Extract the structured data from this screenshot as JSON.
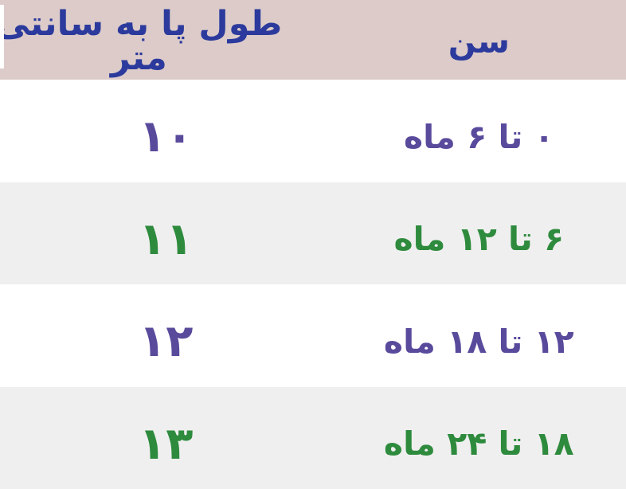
{
  "table": {
    "header": {
      "age_label": "سن",
      "length_label": "طول پا به سانتی متر"
    },
    "rows": [
      {
        "age": "۰ تا ۶ ماه",
        "length": "۱۰",
        "tone": "purple"
      },
      {
        "age": "۶ تا ۱۲ ماه",
        "length": "۱۱",
        "tone": "green"
      },
      {
        "age": "۱۲ تا ۱۸ ماه",
        "length": "۱۲",
        "tone": "purple"
      },
      {
        "age": "۱۸ تا ۲۴ ماه",
        "length": "۱۳",
        "tone": "green"
      }
    ],
    "colors": {
      "header_bg": "#dccbc9",
      "header_text": "#2b3a9c",
      "row_alt_bg": "#efefef",
      "row_bg": "#ffffff",
      "purple": "#5a4a9c",
      "green": "#2e8b3d"
    }
  },
  "chart_data": {
    "type": "table",
    "title": "",
    "columns": [
      "سن",
      "طول پا به سانتی متر"
    ],
    "rows": [
      [
        "۰ تا ۶ ماه",
        "۱۰"
      ],
      [
        "۶ تا ۱۲ ماه",
        "۱۱"
      ],
      [
        "۱۲ تا ۱۸ ماه",
        "۱۲"
      ],
      [
        "۱۸ تا ۲۴ ماه",
        "۱۳"
      ]
    ],
    "age_ranges_months": [
      [
        0,
        6
      ],
      [
        6,
        12
      ],
      [
        12,
        18
      ],
      [
        18,
        24
      ]
    ],
    "foot_length_cm": [
      10,
      11,
      12,
      13
    ],
    "layout": "rtl, age column on right, alternating white/gray rows"
  }
}
